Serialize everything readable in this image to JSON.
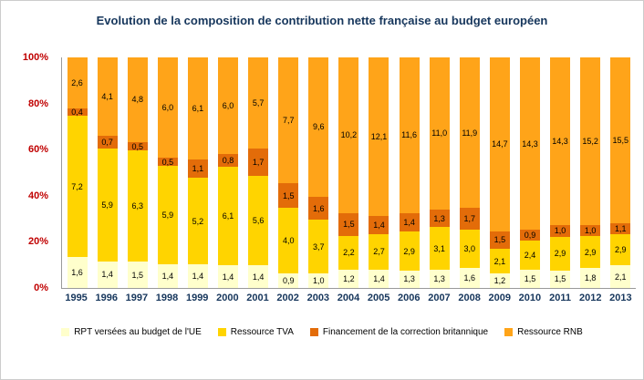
{
  "title": "Evolution de la composition de contribution nette française au budget européen",
  "styles": {
    "title_color": "#16365C",
    "y_tick_color": "#C00000",
    "x_tick_color": "#16365C",
    "data_label_color": "#000000",
    "background": "#FFFFFF",
    "border_color": "#CCCCCC"
  },
  "chart_data": {
    "type": "bar",
    "subtype": "stacked-100-percent",
    "title": "Evolution de la composition de contribution nette française au budget européen",
    "categories": [
      "1995",
      "1996",
      "1997",
      "1998",
      "1999",
      "2000",
      "2001",
      "2002",
      "2003",
      "2004",
      "2005",
      "2006",
      "2007",
      "2008",
      "2009",
      "2010",
      "2011",
      "2012",
      "2013"
    ],
    "series": [
      {
        "name": "RPT versées au budget de l'UE",
        "color": "#FFFFCC",
        "values": [
          1.6,
          1.4,
          1.5,
          1.4,
          1.4,
          1.4,
          1.4,
          0.9,
          1.0,
          1.2,
          1.4,
          1.3,
          1.3,
          1.6,
          1.2,
          1.5,
          1.5,
          1.8,
          2.1
        ]
      },
      {
        "name": "Ressource TVA",
        "color": "#FFD400",
        "values": [
          7.2,
          5.9,
          6.3,
          5.9,
          5.2,
          6.1,
          5.6,
          4.0,
          3.7,
          2.2,
          2.7,
          2.9,
          3.1,
          3.0,
          2.1,
          2.4,
          2.9,
          2.9,
          2.9
        ]
      },
      {
        "name": "Financement de la correction britannique",
        "color": "#E36C09",
        "values": [
          0.4,
          0.7,
          0.5,
          0.5,
          1.1,
          0.8,
          1.7,
          1.5,
          1.6,
          1.5,
          1.4,
          1.4,
          1.3,
          1.7,
          1.5,
          0.9,
          1.0,
          1.0,
          1.1
        ]
      },
      {
        "name": "Ressource RNB",
        "color": "#FFA419",
        "values": [
          2.6,
          4.1,
          4.8,
          6.0,
          6.1,
          6.0,
          5.7,
          7.7,
          9.6,
          10.2,
          12.1,
          11.6,
          11.0,
          11.9,
          14.7,
          14.3,
          14.3,
          15.2,
          15.5
        ]
      }
    ],
    "y_ticks": [
      "100%",
      "80%",
      "60%",
      "40%",
      "20%",
      "0%"
    ],
    "ylim": [
      0,
      100
    ],
    "grid": false,
    "legend_position": "bottom",
    "data_label_decimal_separator": ","
  }
}
